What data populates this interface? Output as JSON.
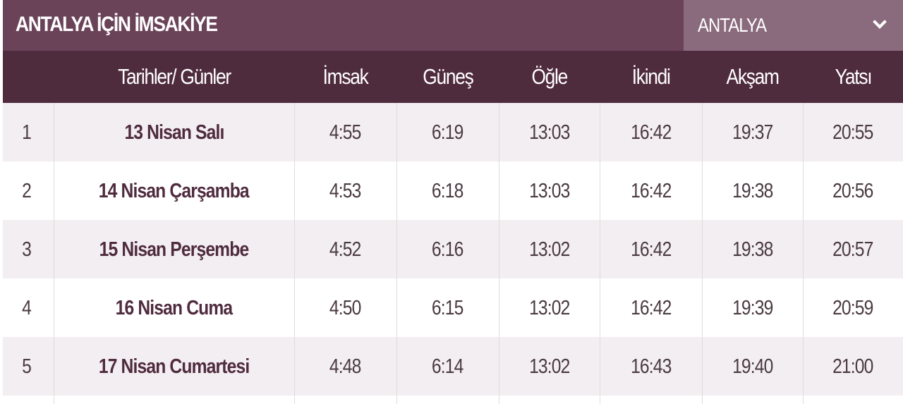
{
  "title": "ANTALYA İÇİN İMSAKİYE",
  "city_select": {
    "value": "ANTALYA",
    "icon": "chevron-down-icon"
  },
  "colors": {
    "title_bar": "#6b4359",
    "header": "#4f2b3e",
    "dropdown": "#8a6b7d",
    "row_alt": "#f3eef1"
  },
  "columns": [
    "",
    "Tarihler/ Günler",
    "İmsak",
    "Güneş",
    "Öğle",
    "İkindi",
    "Akşam",
    "Yatsı"
  ],
  "rows": [
    {
      "no": "1",
      "day": "13 Nisan Salı",
      "times": [
        "4:55",
        "6:19",
        "13:03",
        "16:42",
        "19:37",
        "20:55"
      ]
    },
    {
      "no": "2",
      "day": "14 Nisan Çarşamba",
      "times": [
        "4:53",
        "6:18",
        "13:03",
        "16:42",
        "19:38",
        "20:56"
      ]
    },
    {
      "no": "3",
      "day": "15 Nisan Perşembe",
      "times": [
        "4:52",
        "6:16",
        "13:02",
        "16:42",
        "19:38",
        "20:57"
      ]
    },
    {
      "no": "4",
      "day": "16 Nisan Cuma",
      "times": [
        "4:50",
        "6:15",
        "13:02",
        "16:42",
        "19:39",
        "20:59"
      ]
    },
    {
      "no": "5",
      "day": "17 Nisan Cumartesi",
      "times": [
        "4:48",
        "6:14",
        "13:02",
        "16:43",
        "19:40",
        "21:00"
      ]
    }
  ]
}
